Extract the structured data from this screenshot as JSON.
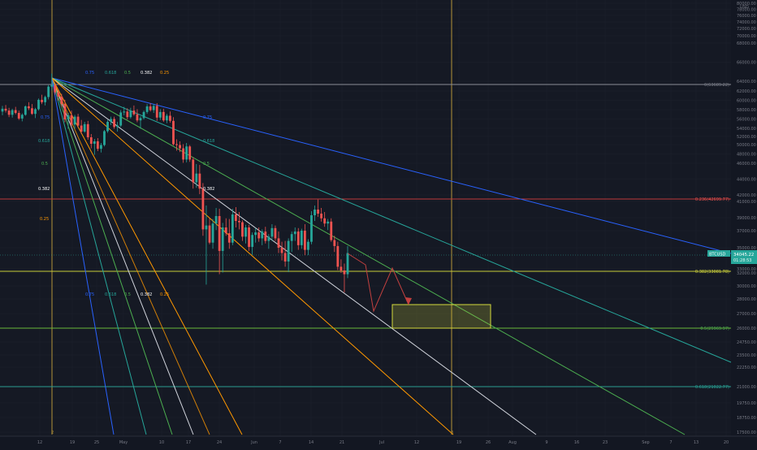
{
  "chart_data": {
    "type": "candlestick",
    "symbol": "BTCUSD",
    "currency": "USD",
    "price_badge": {
      "symbol": "BTCUSD",
      "price": "34045.22",
      "countdown": "01:28:53"
    },
    "y_ticks": [
      "80000.00",
      "78000.00",
      "76000.00",
      "74000.00",
      "72000.00",
      "70000.00",
      "68000.00",
      "66000.00",
      "64000.00",
      "62000.00",
      "60000.00",
      "58000.00",
      "56000.00",
      "54000.00",
      "52000.00",
      "50000.00",
      "48000.00",
      "46000.00",
      "44000.00",
      "42000.00",
      "41000.00",
      "39000.00",
      "37000.00",
      "35000.00",
      "33000.00",
      "32000.00",
      "30000.00",
      "28000.00",
      "27000.00",
      "26000.00",
      "24750.00",
      "23500.00",
      "22250.00",
      "21000.00",
      "19750.00",
      "18750.00",
      "17500.00"
    ],
    "x_ticks": [
      "12",
      "19",
      "25",
      "May",
      "10",
      "17",
      "24",
      "Jun",
      "7",
      "14",
      "21",
      "Jul",
      "12",
      "19",
      "26",
      "Aug",
      "9",
      "16",
      "23",
      "Sep",
      "7",
      "13",
      "20"
    ],
    "fib_labels": [
      {
        "text": "0(63689.22)",
        "color": "#787b86"
      },
      {
        "text": "0.236(42699.77)",
        "color": "#ef5350"
      },
      {
        "text": "0.382(33081.78)",
        "color": "#d4d93b"
      },
      {
        "text": "0.5(25969.97)",
        "color": "#4caf50"
      },
      {
        "text": "0.618(21022.77)",
        "color": "#26a69a"
      }
    ],
    "fan_labels_top": [
      "0.75",
      "0.618",
      "0.5",
      "0.382",
      "0.25"
    ],
    "fan_labels_bottom": [
      "0.75",
      "0.618",
      "0.5",
      "0.382",
      "0.25"
    ],
    "fan_labels_left": [
      "0.75",
      "0.618",
      "0.5",
      "0.382",
      "0.25"
    ],
    "fan_labels_mid": [
      "0.75",
      "0.618",
      "0.5",
      "0.382"
    ],
    "vline_labels": [
      "2",
      "3"
    ],
    "fan_colors": [
      "#2962ff",
      "#26a69a",
      "#4caf50",
      "#ffffff",
      "#ff9800"
    ],
    "colors": {
      "up": "#26a69a",
      "down": "#ef5350",
      "background": "#151924",
      "grid": "#1f2330"
    },
    "candles": [
      {
        "o": 57600,
        "h": 58800,
        "l": 56800,
        "c": 58200
      },
      {
        "o": 58200,
        "h": 59000,
        "l": 57400,
        "c": 57800
      },
      {
        "o": 57800,
        "h": 58400,
        "l": 56400,
        "c": 56900
      },
      {
        "o": 56900,
        "h": 58200,
        "l": 56300,
        "c": 57900
      },
      {
        "o": 57900,
        "h": 58600,
        "l": 57000,
        "c": 57300
      },
      {
        "o": 57300,
        "h": 57800,
        "l": 55800,
        "c": 56100
      },
      {
        "o": 56100,
        "h": 57200,
        "l": 55500,
        "c": 56900
      },
      {
        "o": 56900,
        "h": 58900,
        "l": 56700,
        "c": 58700
      },
      {
        "o": 58700,
        "h": 59600,
        "l": 57900,
        "c": 58300
      },
      {
        "o": 58300,
        "h": 59200,
        "l": 56900,
        "c": 57100
      },
      {
        "o": 57100,
        "h": 58400,
        "l": 56200,
        "c": 58100
      },
      {
        "o": 58100,
        "h": 60400,
        "l": 57800,
        "c": 60100
      },
      {
        "o": 60100,
        "h": 61200,
        "l": 59200,
        "c": 59600
      },
      {
        "o": 59600,
        "h": 61000,
        "l": 58900,
        "c": 60700
      },
      {
        "o": 60700,
        "h": 63200,
        "l": 60200,
        "c": 62900
      },
      {
        "o": 62900,
        "h": 64800,
        "l": 62100,
        "c": 63200
      },
      {
        "o": 63200,
        "h": 63700,
        "l": 61200,
        "c": 61700
      },
      {
        "o": 61700,
        "h": 62300,
        "l": 59900,
        "c": 60800
      },
      {
        "o": 60800,
        "h": 61400,
        "l": 58600,
        "c": 59200
      },
      {
        "o": 59200,
        "h": 60100,
        "l": 55300,
        "c": 55900
      },
      {
        "o": 55900,
        "h": 57300,
        "l": 53900,
        "c": 56800
      },
      {
        "o": 56800,
        "h": 57800,
        "l": 54400,
        "c": 54800
      },
      {
        "o": 54800,
        "h": 56900,
        "l": 53900,
        "c": 56500
      },
      {
        "o": 56500,
        "h": 57100,
        "l": 54200,
        "c": 54600
      },
      {
        "o": 54600,
        "h": 55800,
        "l": 52600,
        "c": 53200
      },
      {
        "o": 53200,
        "h": 55400,
        "l": 52900,
        "c": 54900
      },
      {
        "o": 54900,
        "h": 55600,
        "l": 51200,
        "c": 51800
      },
      {
        "o": 51800,
        "h": 52600,
        "l": 49200,
        "c": 50200
      },
      {
        "o": 50200,
        "h": 51400,
        "l": 47800,
        "c": 50800
      },
      {
        "o": 50800,
        "h": 51600,
        "l": 48600,
        "c": 49100
      },
      {
        "o": 49100,
        "h": 50400,
        "l": 48300,
        "c": 49900
      },
      {
        "o": 49900,
        "h": 53600,
        "l": 49600,
        "c": 53300
      },
      {
        "o": 53300,
        "h": 55800,
        "l": 52900,
        "c": 55400
      },
      {
        "o": 55400,
        "h": 56500,
        "l": 54700,
        "c": 56000
      },
      {
        "o": 56000,
        "h": 56500,
        "l": 53900,
        "c": 54300
      },
      {
        "o": 54300,
        "h": 55400,
        "l": 53200,
        "c": 54600
      },
      {
        "o": 54600,
        "h": 57900,
        "l": 54300,
        "c": 57400
      },
      {
        "o": 57400,
        "h": 58600,
        "l": 56800,
        "c": 57600
      },
      {
        "o": 57600,
        "h": 58300,
        "l": 55900,
        "c": 56400
      },
      {
        "o": 56400,
        "h": 58400,
        "l": 56100,
        "c": 57800
      },
      {
        "o": 57800,
        "h": 58900,
        "l": 56700,
        "c": 57000
      },
      {
        "o": 57000,
        "h": 58100,
        "l": 55300,
        "c": 55700
      },
      {
        "o": 55700,
        "h": 56600,
        "l": 53900,
        "c": 56200
      },
      {
        "o": 56200,
        "h": 57800,
        "l": 55900,
        "c": 57500
      },
      {
        "o": 57500,
        "h": 59200,
        "l": 57100,
        "c": 58700
      },
      {
        "o": 58700,
        "h": 59400,
        "l": 57600,
        "c": 57900
      },
      {
        "o": 57900,
        "h": 59200,
        "l": 57300,
        "c": 58800
      },
      {
        "o": 58800,
        "h": 59400,
        "l": 55600,
        "c": 56300
      },
      {
        "o": 56300,
        "h": 58100,
        "l": 55800,
        "c": 57500
      },
      {
        "o": 57500,
        "h": 58200,
        "l": 55400,
        "c": 55700
      },
      {
        "o": 55700,
        "h": 57100,
        "l": 55100,
        "c": 56700
      },
      {
        "o": 56700,
        "h": 57600,
        "l": 55200,
        "c": 55600
      },
      {
        "o": 55600,
        "h": 56400,
        "l": 49800,
        "c": 50100
      },
      {
        "o": 50100,
        "h": 51300,
        "l": 48700,
        "c": 49900
      },
      {
        "o": 49900,
        "h": 50800,
        "l": 48400,
        "c": 49200
      },
      {
        "o": 49200,
        "h": 50100,
        "l": 46100,
        "c": 46800
      },
      {
        "o": 46800,
        "h": 50400,
        "l": 46200,
        "c": 49600
      },
      {
        "o": 49600,
        "h": 49900,
        "l": 46300,
        "c": 46800
      },
      {
        "o": 46800,
        "h": 47300,
        "l": 42800,
        "c": 43600
      },
      {
        "o": 43600,
        "h": 45900,
        "l": 42900,
        "c": 44700
      },
      {
        "o": 44700,
        "h": 45800,
        "l": 42100,
        "c": 42800
      },
      {
        "o": 42800,
        "h": 43500,
        "l": 36400,
        "c": 37200
      },
      {
        "o": 37200,
        "h": 40500,
        "l": 30200,
        "c": 37800
      },
      {
        "o": 37800,
        "h": 38900,
        "l": 35400,
        "c": 35600
      },
      {
        "o": 35600,
        "h": 38800,
        "l": 34900,
        "c": 38100
      },
      {
        "o": 38100,
        "h": 40200,
        "l": 37100,
        "c": 39200
      },
      {
        "o": 39200,
        "h": 40100,
        "l": 31800,
        "c": 34700
      },
      {
        "o": 34700,
        "h": 38200,
        "l": 32100,
        "c": 37500
      },
      {
        "o": 37500,
        "h": 38900,
        "l": 36400,
        "c": 36700
      },
      {
        "o": 36700,
        "h": 38800,
        "l": 34900,
        "c": 35600
      },
      {
        "o": 35600,
        "h": 40100,
        "l": 35300,
        "c": 39400
      },
      {
        "o": 39400,
        "h": 40300,
        "l": 37500,
        "c": 38500
      },
      {
        "o": 38500,
        "h": 39700,
        "l": 37200,
        "c": 38300
      },
      {
        "o": 38300,
        "h": 38600,
        "l": 35800,
        "c": 36300
      },
      {
        "o": 36300,
        "h": 37900,
        "l": 35500,
        "c": 37500
      },
      {
        "o": 37500,
        "h": 37900,
        "l": 34700,
        "c": 35100
      },
      {
        "o": 35100,
        "h": 36800,
        "l": 34300,
        "c": 36500
      },
      {
        "o": 36500,
        "h": 37400,
        "l": 35600,
        "c": 36800
      },
      {
        "o": 36800,
        "h": 37500,
        "l": 35700,
        "c": 36100
      },
      {
        "o": 36100,
        "h": 37200,
        "l": 35300,
        "c": 36900
      },
      {
        "o": 36900,
        "h": 37600,
        "l": 35500,
        "c": 35800
      },
      {
        "o": 35800,
        "h": 36600,
        "l": 34900,
        "c": 36300
      },
      {
        "o": 36300,
        "h": 38000,
        "l": 35800,
        "c": 37400
      },
      {
        "o": 37400,
        "h": 37800,
        "l": 35800,
        "c": 36100
      },
      {
        "o": 36100,
        "h": 36900,
        "l": 34500,
        "c": 35000
      },
      {
        "o": 35000,
        "h": 35700,
        "l": 33800,
        "c": 34500
      },
      {
        "o": 34500,
        "h": 35800,
        "l": 33200,
        "c": 33700
      },
      {
        "o": 33700,
        "h": 36100,
        "l": 32200,
        "c": 35800
      },
      {
        "o": 35800,
        "h": 36900,
        "l": 34600,
        "c": 36600
      },
      {
        "o": 36600,
        "h": 37500,
        "l": 35800,
        "c": 36900
      },
      {
        "o": 36900,
        "h": 37400,
        "l": 34800,
        "c": 35300
      },
      {
        "o": 35300,
        "h": 37300,
        "l": 34900,
        "c": 37000
      },
      {
        "o": 37000,
        "h": 38000,
        "l": 34300,
        "c": 34800
      },
      {
        "o": 34800,
        "h": 36000,
        "l": 34300,
        "c": 35700
      },
      {
        "o": 35700,
        "h": 39800,
        "l": 35400,
        "c": 39300
      },
      {
        "o": 39300,
        "h": 40500,
        "l": 38500,
        "c": 40000
      },
      {
        "o": 40000,
        "h": 41300,
        "l": 39100,
        "c": 39500
      },
      {
        "o": 39500,
        "h": 40200,
        "l": 38400,
        "c": 38900
      },
      {
        "o": 38900,
        "h": 39700,
        "l": 37600,
        "c": 38100
      },
      {
        "o": 38100,
        "h": 38800,
        "l": 37100,
        "c": 38400
      },
      {
        "o": 38400,
        "h": 38900,
        "l": 35700,
        "c": 35900
      },
      {
        "o": 35900,
        "h": 36400,
        "l": 34600,
        "c": 35200
      },
      {
        "o": 35200,
        "h": 35700,
        "l": 32700,
        "c": 33200
      },
      {
        "o": 33200,
        "h": 33900,
        "l": 32000,
        "c": 32600
      },
      {
        "o": 32600,
        "h": 33500,
        "l": 29000,
        "c": 31800
      },
      {
        "o": 31800,
        "h": 35200,
        "l": 31200,
        "c": 34500
      }
    ]
  }
}
